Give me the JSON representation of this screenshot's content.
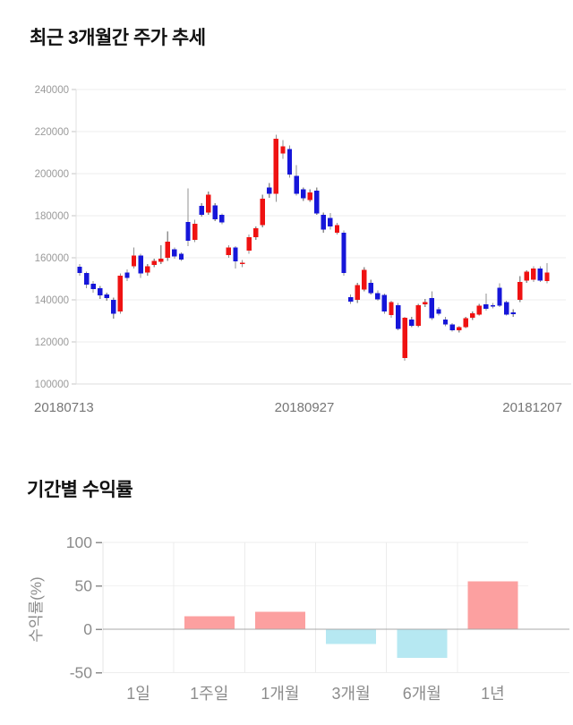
{
  "price_chart": {
    "title": "최근 3개월간 주가 추세",
    "y_tick_labels": [
      "240000",
      "220000",
      "200000",
      "180000",
      "160000",
      "140000",
      "120000",
      "100000"
    ],
    "x_tick_labels": [
      "20180713",
      "20180927",
      "20181207"
    ]
  },
  "returns_chart": {
    "title": "기간별 수익률",
    "ylabel": "수익률(%)",
    "y_tick_labels": [
      "100",
      "50",
      "0",
      "-50"
    ]
  },
  "colors": {
    "candle_up": "#ef1212",
    "candle_down": "#1616d9",
    "wick": "#909090",
    "grid": "#ededed",
    "grid_faint": "#f2f2f2",
    "axis": "#e0e0e0",
    "price_tick_text": "#9a9a9a",
    "date_text": "#767676",
    "bar_positive": "#fca0a0",
    "bar_negative": "#b6e8f2",
    "zero_line": "#a8a8a8",
    "returns_text": "#8c8c8c",
    "title_text": "#111111"
  },
  "chart_data": [
    {
      "type": "candlestick",
      "title": "최근 3개월간 주가 추세",
      "unit": "KRW",
      "ylim": [
        100000,
        240000
      ],
      "y_ticks": [
        240000,
        220000,
        200000,
        180000,
        160000,
        140000,
        120000,
        100000
      ],
      "x_ticks": [
        "20180713",
        "20180927",
        "20181207"
      ],
      "grid": "horizontal",
      "ohlc": [
        [
          155700,
          157000,
          151500,
          152800
        ],
        [
          152800,
          153500,
          145500,
          147200
        ],
        [
          147700,
          149000,
          143500,
          145100
        ],
        [
          145500,
          146500,
          140500,
          142100
        ],
        [
          142500,
          143500,
          139500,
          140800
        ],
        [
          140000,
          141000,
          131000,
          133500
        ],
        [
          134500,
          152500,
          133500,
          151500
        ],
        [
          153000,
          154500,
          149000,
          150500
        ],
        [
          156000,
          164800,
          155000,
          161000
        ],
        [
          161000,
          162000,
          150500,
          152500
        ],
        [
          153000,
          157000,
          151500,
          156000
        ],
        [
          156500,
          159500,
          155500,
          158500
        ],
        [
          158000,
          166000,
          157000,
          159500
        ],
        [
          160000,
          172500,
          158500,
          167700
        ],
        [
          164100,
          165000,
          159500,
          160600
        ],
        [
          161900,
          162500,
          158500,
          159100
        ],
        [
          177000,
          193000,
          165500,
          168000
        ],
        [
          168500,
          178000,
          167500,
          176200
        ],
        [
          184700,
          186000,
          179500,
          180400
        ],
        [
          181500,
          191500,
          180500,
          190000
        ],
        [
          185000,
          186000,
          177500,
          178300
        ],
        [
          180400,
          181000,
          176000,
          176900
        ],
        [
          161300,
          166000,
          160000,
          164800
        ],
        [
          164800,
          165500,
          154900,
          158400
        ],
        [
          157000,
          159000,
          155500,
          157700
        ],
        [
          163400,
          171000,
          162000,
          169800
        ],
        [
          169800,
          175000,
          168500,
          174000
        ],
        [
          175500,
          190000,
          174500,
          188000
        ],
        [
          193500,
          195500,
          188500,
          190500
        ],
        [
          190500,
          218500,
          186500,
          216500
        ],
        [
          209500,
          215900,
          207000,
          213000
        ],
        [
          211600,
          213500,
          198000,
          199600
        ],
        [
          199000,
          204000,
          189500,
          190400
        ],
        [
          192500,
          193500,
          187000,
          188300
        ],
        [
          187500,
          192500,
          186500,
          191100
        ],
        [
          192000,
          193500,
          180500,
          181100
        ],
        [
          180400,
          181500,
          172000,
          173300
        ],
        [
          179000,
          181300,
          173500,
          174800
        ],
        [
          171900,
          176500,
          171000,
          175500
        ],
        [
          171900,
          173000,
          151500,
          152800
        ],
        [
          141300,
          142500,
          138000,
          139100
        ],
        [
          139900,
          148000,
          138500,
          147000
        ],
        [
          145000,
          155500,
          144000,
          154200
        ],
        [
          148100,
          149500,
          142500,
          143100
        ],
        [
          143100,
          144500,
          139500,
          140300
        ],
        [
          142400,
          143000,
          133500,
          134500
        ],
        [
          132700,
          139500,
          131500,
          138900
        ],
        [
          137400,
          138500,
          125500,
          126100
        ],
        [
          112300,
          132000,
          111000,
          131500
        ],
        [
          130600,
          132000,
          127000,
          127700
        ],
        [
          127700,
          138000,
          127000,
          137400
        ],
        [
          137900,
          140500,
          136500,
          138900
        ],
        [
          140900,
          144000,
          130500,
          131300
        ],
        [
          135600,
          136500,
          132500,
          133400
        ],
        [
          130600,
          132000,
          127500,
          128400
        ],
        [
          128400,
          129000,
          125000,
          125600
        ],
        [
          125600,
          127500,
          124500,
          127000
        ],
        [
          127000,
          132000,
          126500,
          131300
        ],
        [
          131500,
          134500,
          130500,
          133600
        ],
        [
          133000,
          138000,
          132500,
          137200
        ],
        [
          137900,
          143000,
          135000,
          135700
        ],
        [
          137500,
          138500,
          136000,
          137000
        ],
        [
          145700,
          147800,
          136500,
          137200
        ],
        [
          138900,
          139500,
          132500,
          132900
        ],
        [
          134000,
          135500,
          132000,
          133700
        ],
        [
          140000,
          151300,
          139000,
          148500
        ],
        [
          149200,
          154000,
          148000,
          153500
        ],
        [
          149500,
          156000,
          148500,
          154900
        ],
        [
          154900,
          156000,
          148500,
          149200
        ],
        [
          149000,
          157500,
          147800,
          153000
        ]
      ]
    },
    {
      "type": "bar",
      "title": "기간별 수익률",
      "categories": [
        "1일",
        "1주일",
        "1개월",
        "3개월",
        "6개월",
        "1년"
      ],
      "values": [
        0,
        15,
        20,
        -17,
        -33,
        55
      ],
      "xlabel": "",
      "ylabel": "수익률(%)",
      "ylim": [
        -50,
        100
      ],
      "y_ticks": [
        100,
        50,
        0,
        -50
      ],
      "grid": "both",
      "legend": "none"
    }
  ]
}
